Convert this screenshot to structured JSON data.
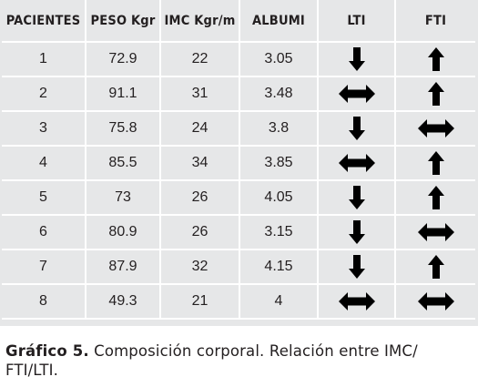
{
  "table": {
    "headers": [
      "PACIENTES",
      "PESO Kgr",
      "IMC Kgr/m",
      "ALBUMI",
      "LTI",
      "FTI"
    ],
    "rows": [
      {
        "paciente": "1",
        "peso": "72.9",
        "imc": "22",
        "albumi": "3.05",
        "lti": "down",
        "fti": "up"
      },
      {
        "paciente": "2",
        "peso": "91.1",
        "imc": "31",
        "albumi": "3.48",
        "lti": "both",
        "fti": "up"
      },
      {
        "paciente": "3",
        "peso": "75.8",
        "imc": "24",
        "albumi": "3.8",
        "lti": "down",
        "fti": "both"
      },
      {
        "paciente": "4",
        "peso": "85.5",
        "imc": "34",
        "albumi": "3.85",
        "lti": "both",
        "fti": "up"
      },
      {
        "paciente": "5",
        "peso": "73",
        "imc": "26",
        "albumi": "4.05",
        "lti": "down",
        "fti": "up"
      },
      {
        "paciente": "6",
        "peso": "80.9",
        "imc": "26",
        "albumi": "3.15",
        "lti": "down",
        "fti": "both"
      },
      {
        "paciente": "7",
        "peso": "87.9",
        "imc": "32",
        "albumi": "4.15",
        "lti": "down",
        "fti": "up"
      },
      {
        "paciente": "8",
        "peso": "49.3",
        "imc": "21",
        "albumi": "4",
        "lti": "both",
        "fti": "both"
      }
    ]
  },
  "icons": {
    "up": "arrow-up-icon",
    "down": "arrow-down-icon",
    "both": "arrow-left-right-icon"
  },
  "caption": {
    "label": "Gráfico 5.",
    "text": " Composición corporal. Relación entre IMC/ FTI/LTI."
  }
}
